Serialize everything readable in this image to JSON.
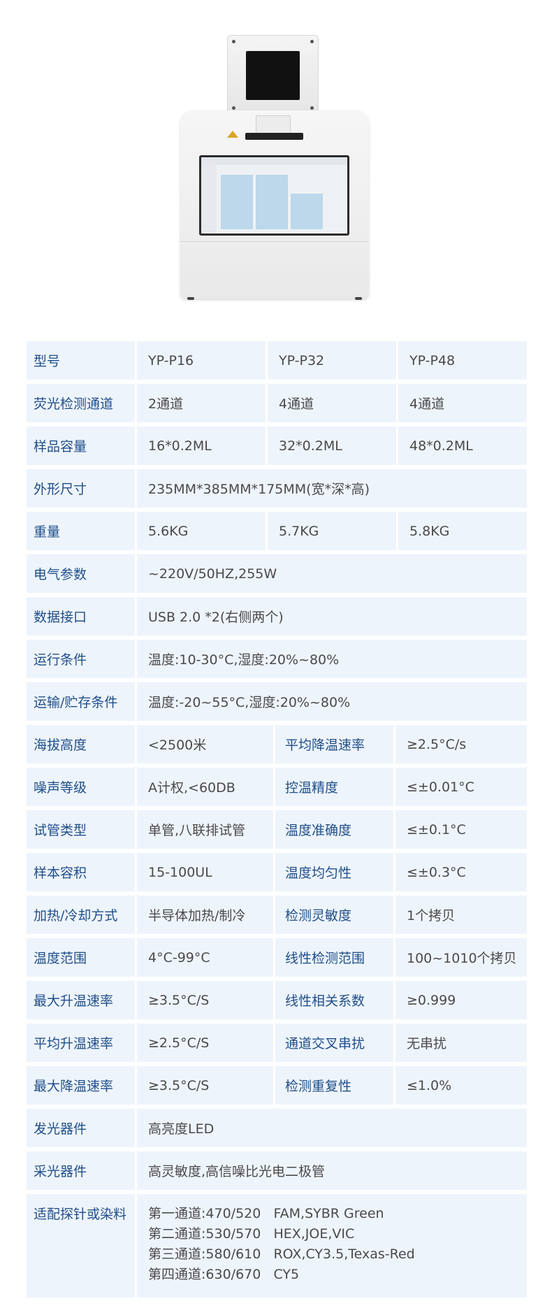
{
  "rows": [
    {
      "label": "型号",
      "type": "three",
      "values": [
        "YP-P16",
        "YP-P32",
        "YP-P48"
      ]
    },
    {
      "label": "荧光检测通道",
      "type": "three",
      "values": [
        "2通道",
        "4通道",
        "4通道"
      ]
    },
    {
      "label": "样品容量",
      "type": "three",
      "values": [
        "16*0.2ML",
        "32*0.2ML",
        "48*0.2ML"
      ]
    },
    {
      "label": "外形尺寸",
      "type": "span",
      "values": [
        "235MM*385MM*175MM(宽*深*高)"
      ]
    },
    {
      "label": "重量",
      "type": "three",
      "values": [
        "5.6KG",
        "5.7KG",
        "5.8KG"
      ]
    },
    {
      "label": "电气参数",
      "type": "span",
      "values": [
        "~220V/50HZ,255W"
      ]
    },
    {
      "label": "数据接口",
      "type": "span",
      "values": [
        "USB 2.0 *2(右侧两个)"
      ]
    },
    {
      "label": "运行条件",
      "type": "span",
      "values": [
        "温度:10-30°C,湿度:20%~80%"
      ]
    },
    {
      "label": "运输/贮存条件",
      "type": "span",
      "values": [
        "温度:-20~55°C,湿度:20%~80%"
      ]
    },
    {
      "label": "海拔高度",
      "type": "pair",
      "values": [
        "<2500米",
        "平均降温速率",
        "≥2.5°C/s"
      ]
    },
    {
      "label": "噪声等级",
      "type": "pair",
      "values": [
        "A计权,<60DB",
        "控温精度",
        "≤±0.01°C"
      ]
    },
    {
      "label": "试管类型",
      "type": "pair",
      "values": [
        "单管,八联排试管",
        "温度准确度",
        "≤±0.1°C"
      ]
    },
    {
      "label": "样本容积",
      "type": "pair",
      "values": [
        "15-100UL",
        "温度均匀性",
        "≤±0.3°C"
      ]
    },
    {
      "label": "加热/冷却方式",
      "type": "pair",
      "values": [
        "半导体加热/制冷",
        "检测灵敏度",
        "1个拷贝"
      ]
    },
    {
      "label": "温度范围",
      "type": "pair",
      "values": [
        "4°C-99°C",
        "线性检测范围",
        "100~1010个拷贝"
      ]
    },
    {
      "label": "最大升温速率",
      "type": "pair",
      "values": [
        "≥3.5°C/S",
        "线性相关系数",
        "≥0.999"
      ]
    },
    {
      "label": "平均升温速率",
      "type": "pair",
      "values": [
        "≥2.5°C/S",
        "通道交叉串扰",
        "无串扰"
      ]
    },
    {
      "label": "最大降温速率",
      "type": "pair",
      "values": [
        "≥3.5°C/S",
        "检测重复性",
        "≤1.0%"
      ]
    },
    {
      "label": "发光器件",
      "type": "span",
      "values": [
        "高亮度LED"
      ]
    },
    {
      "label": "采光器件",
      "type": "span",
      "values": [
        "高灵敏度,高信噪比光电二极管"
      ]
    },
    {
      "label": "适配探针或染料",
      "type": "lines",
      "values": [
        "第一通道:470/520   FAM,SYBR Green",
        "第二通道:530/570   HEX,JOE,VIC",
        "第三通道:580/610   ROX,CY3.5,Texas-Red",
        "第四通道:630/670   CY5"
      ]
    }
  ],
  "colors": {
    "cell_bg": "#eef4fb",
    "label_text": "#1f4f8b",
    "value_text": "#4a4a4a"
  }
}
